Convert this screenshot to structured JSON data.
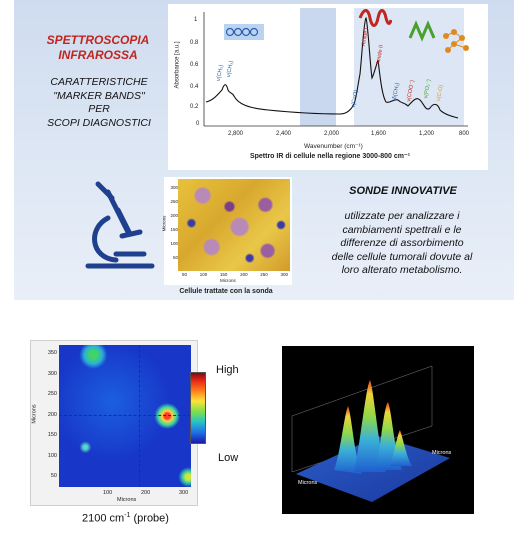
{
  "slide": {
    "title_line1": "SPETTROSCOPIA",
    "title_line2": "INFRAROSSA",
    "subtitle_line1": "CARATTERISTICHE",
    "subtitle_line2": "\"MARKER BANDS\"",
    "subtitle_line3": "PER",
    "subtitle_line4": "SCOPI DIAGNOSTICI",
    "spectrum": {
      "y_axis_label": "Absorbance [a.u.]",
      "x_axis_label": "Wavenumber (cm⁻¹)",
      "caption": "Spettro IR di cellule nella regione 3000-800 cm⁻¹",
      "x_ticks": [
        "2,800",
        "2,400",
        "2,000",
        "1,600",
        "1,200",
        "800"
      ],
      "y_ticks": [
        "1",
        "0.8",
        "0.6",
        "0.4",
        "0.2",
        "0"
      ],
      "band_labels": [
        "ν(CH₂)",
        "ν(CH₃)",
        "ν(C=O)",
        "Amide I",
        "Amide II",
        "δ(CH₂)",
        "ν(COO⁻)",
        "ν(PO₂⁻)",
        "ν(C-O)"
      ]
    },
    "sonde_title": "SONDE INNOVATIVE",
    "sonde_text_lines": [
      "utilizzate per analizzare i",
      "cambiamenti spettrali e le",
      "differenze di assorbimento",
      "delle cellule tumorali dovute al",
      "loro alterato metabolismo."
    ],
    "microscopy": {
      "caption": "Cellule trattate con la sonda",
      "x_label": "Microns",
      "y_label": "Microns",
      "y_ticks": [
        "300",
        "250",
        "200",
        "150",
        "100",
        "50"
      ],
      "x_ticks": [
        "50",
        "100",
        "150",
        "200",
        "250",
        "300"
      ]
    }
  },
  "heatmap": {
    "y_label": "Microns",
    "x_label": "Microns",
    "y_ticks": [
      "350",
      "300",
      "250",
      "200",
      "150",
      "100",
      "50"
    ],
    "x_ticks": [
      "100",
      "200",
      "300"
    ],
    "scale_high": "High",
    "scale_low": "Low",
    "caption_main": "2100 cm",
    "caption_sup": "-1",
    "caption_tail": " (probe)"
  },
  "surface3d": {
    "axis_label_right": "Microns",
    "axis_label_left": "Microns"
  }
}
